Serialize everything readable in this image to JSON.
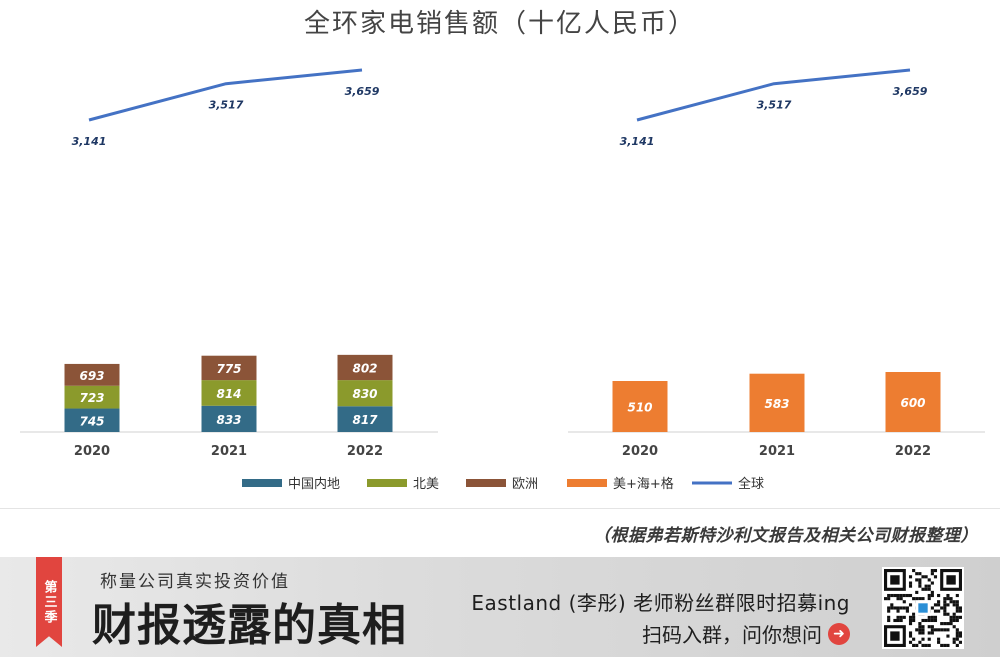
{
  "chart_data": [
    {
      "type": "bar",
      "stacked": true,
      "title": "全环家电销售额（十亿人民币）",
      "categories": [
        "2020",
        "2021",
        "2022"
      ],
      "series": [
        {
          "name": "中国内地",
          "values": [
            745,
            833,
            817
          ],
          "color": "#336b87"
        },
        {
          "name": "北美",
          "values": [
            723,
            814,
            830
          ],
          "color": "#8b9a2c"
        },
        {
          "name": "欧洲",
          "values": [
            693,
            775,
            802
          ],
          "color": "#8b5438"
        }
      ],
      "line_series": {
        "name": "全球",
        "values": [
          3141,
          3517,
          3659
        ],
        "labels": [
          "3,141",
          "3,517",
          "3,659"
        ],
        "color": "#4472c4"
      }
    },
    {
      "type": "bar",
      "categories": [
        "2020",
        "2021",
        "2022"
      ],
      "series": [
        {
          "name": "美+海+格",
          "values": [
            510,
            583,
            600
          ],
          "color": "#ed7d31"
        }
      ],
      "line_series": {
        "name": "全球",
        "values": [
          3141,
          3517,
          3659
        ],
        "labels": [
          "3,141",
          "3,517",
          "3,659"
        ],
        "color": "#4472c4"
      }
    }
  ],
  "legend": [
    {
      "name": "中国内地",
      "color": "#336b87",
      "kind": "bar"
    },
    {
      "name": "北美",
      "color": "#8b9a2c",
      "kind": "bar"
    },
    {
      "name": "欧洲",
      "color": "#8b5438",
      "kind": "bar"
    },
    {
      "name": "美+海+格",
      "color": "#ed7d31",
      "kind": "bar"
    },
    {
      "name": "全球",
      "color": "#4472c4",
      "kind": "line"
    }
  ],
  "source_note": "（根据弗若斯特沙利文报告及相关公司财报整理）",
  "banner": {
    "season_badge": "第三季",
    "slogan": "称量公司真实投资价值",
    "title": "财报透露的真相",
    "recruit": "Eastland (李彤) 老师粉丝群限时招募ing",
    "join": "扫码入群，问你想问",
    "arrow_icon": "arrow-right-circle-icon",
    "accent_color": "#e1453f"
  }
}
